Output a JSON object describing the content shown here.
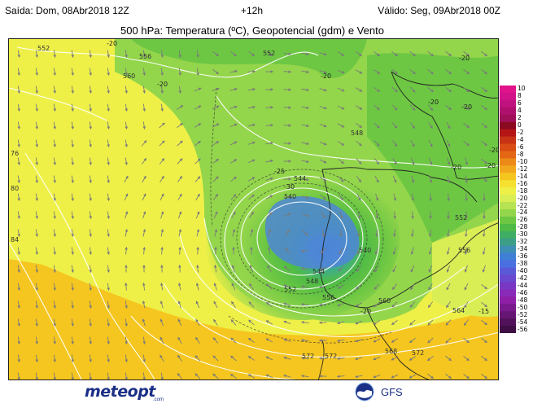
{
  "header": {
    "issued": "Saída: Dom, 08Abr2018 12Z",
    "lead": "+12h",
    "valid": "Válido: Seg, 09Abr2018 00Z",
    "title": "500 hPa: Temperatura (ºC), Geopotencial (gdm) e Vento"
  },
  "map": {
    "geopotential_labels": [
      "552",
      "556",
      "560",
      "552",
      "548",
      "544",
      "540",
      "540",
      "544",
      "548",
      "552",
      "556",
      "560",
      "552",
      "556",
      "564",
      "568",
      "572",
      "572",
      "572",
      "76",
      "80",
      "84"
    ],
    "temperature_labels": [
      "-20",
      "-20",
      "-20",
      "-20",
      "-20",
      "-20",
      "-20",
      "-20",
      "-25",
      "-30",
      "-20",
      "-20",
      "-15"
    ],
    "colors": {
      "land_outline": "#222222",
      "contour": "#ffffff",
      "wind_arrow": "#7a7a7a"
    }
  },
  "colorbar": {
    "ticks": [
      "10",
      "8",
      "6",
      "4",
      "2",
      "0",
      "-2",
      "-4",
      "-6",
      "-8",
      "-10",
      "-12",
      "-14",
      "-16",
      "-18",
      "-20",
      "-22",
      "-24",
      "-26",
      "-28",
      "-30",
      "-32",
      "-34",
      "-36",
      "-38",
      "-40",
      "-42",
      "-44",
      "-46",
      "-48",
      "-50",
      "-52",
      "-54",
      "-56"
    ],
    "colors": [
      "#e0138a",
      "#d1128a",
      "#c0127e",
      "#b0106d",
      "#a0105a",
      "#8a0a22",
      "#b51515",
      "#c83316",
      "#d94d14",
      "#e46715",
      "#ec8a18",
      "#f1a81c",
      "#f5c61f",
      "#f6e030",
      "#eef048",
      "#d9ee55",
      "#b7e352",
      "#93d54b",
      "#6dc743",
      "#4fbb46",
      "#3fae64",
      "#3d9e88",
      "#3f8fb5",
      "#3f7fd6",
      "#4b6fe0",
      "#5a5ad8",
      "#6a48cf",
      "#7938c4",
      "#8a2ab8",
      "#8e1fa6",
      "#7a1a8d",
      "#661673",
      "#52125a",
      "#3e0e44"
    ]
  },
  "footer": {
    "logo_main": "meteopt",
    "logo_sub": ".com",
    "model": "GFS"
  }
}
